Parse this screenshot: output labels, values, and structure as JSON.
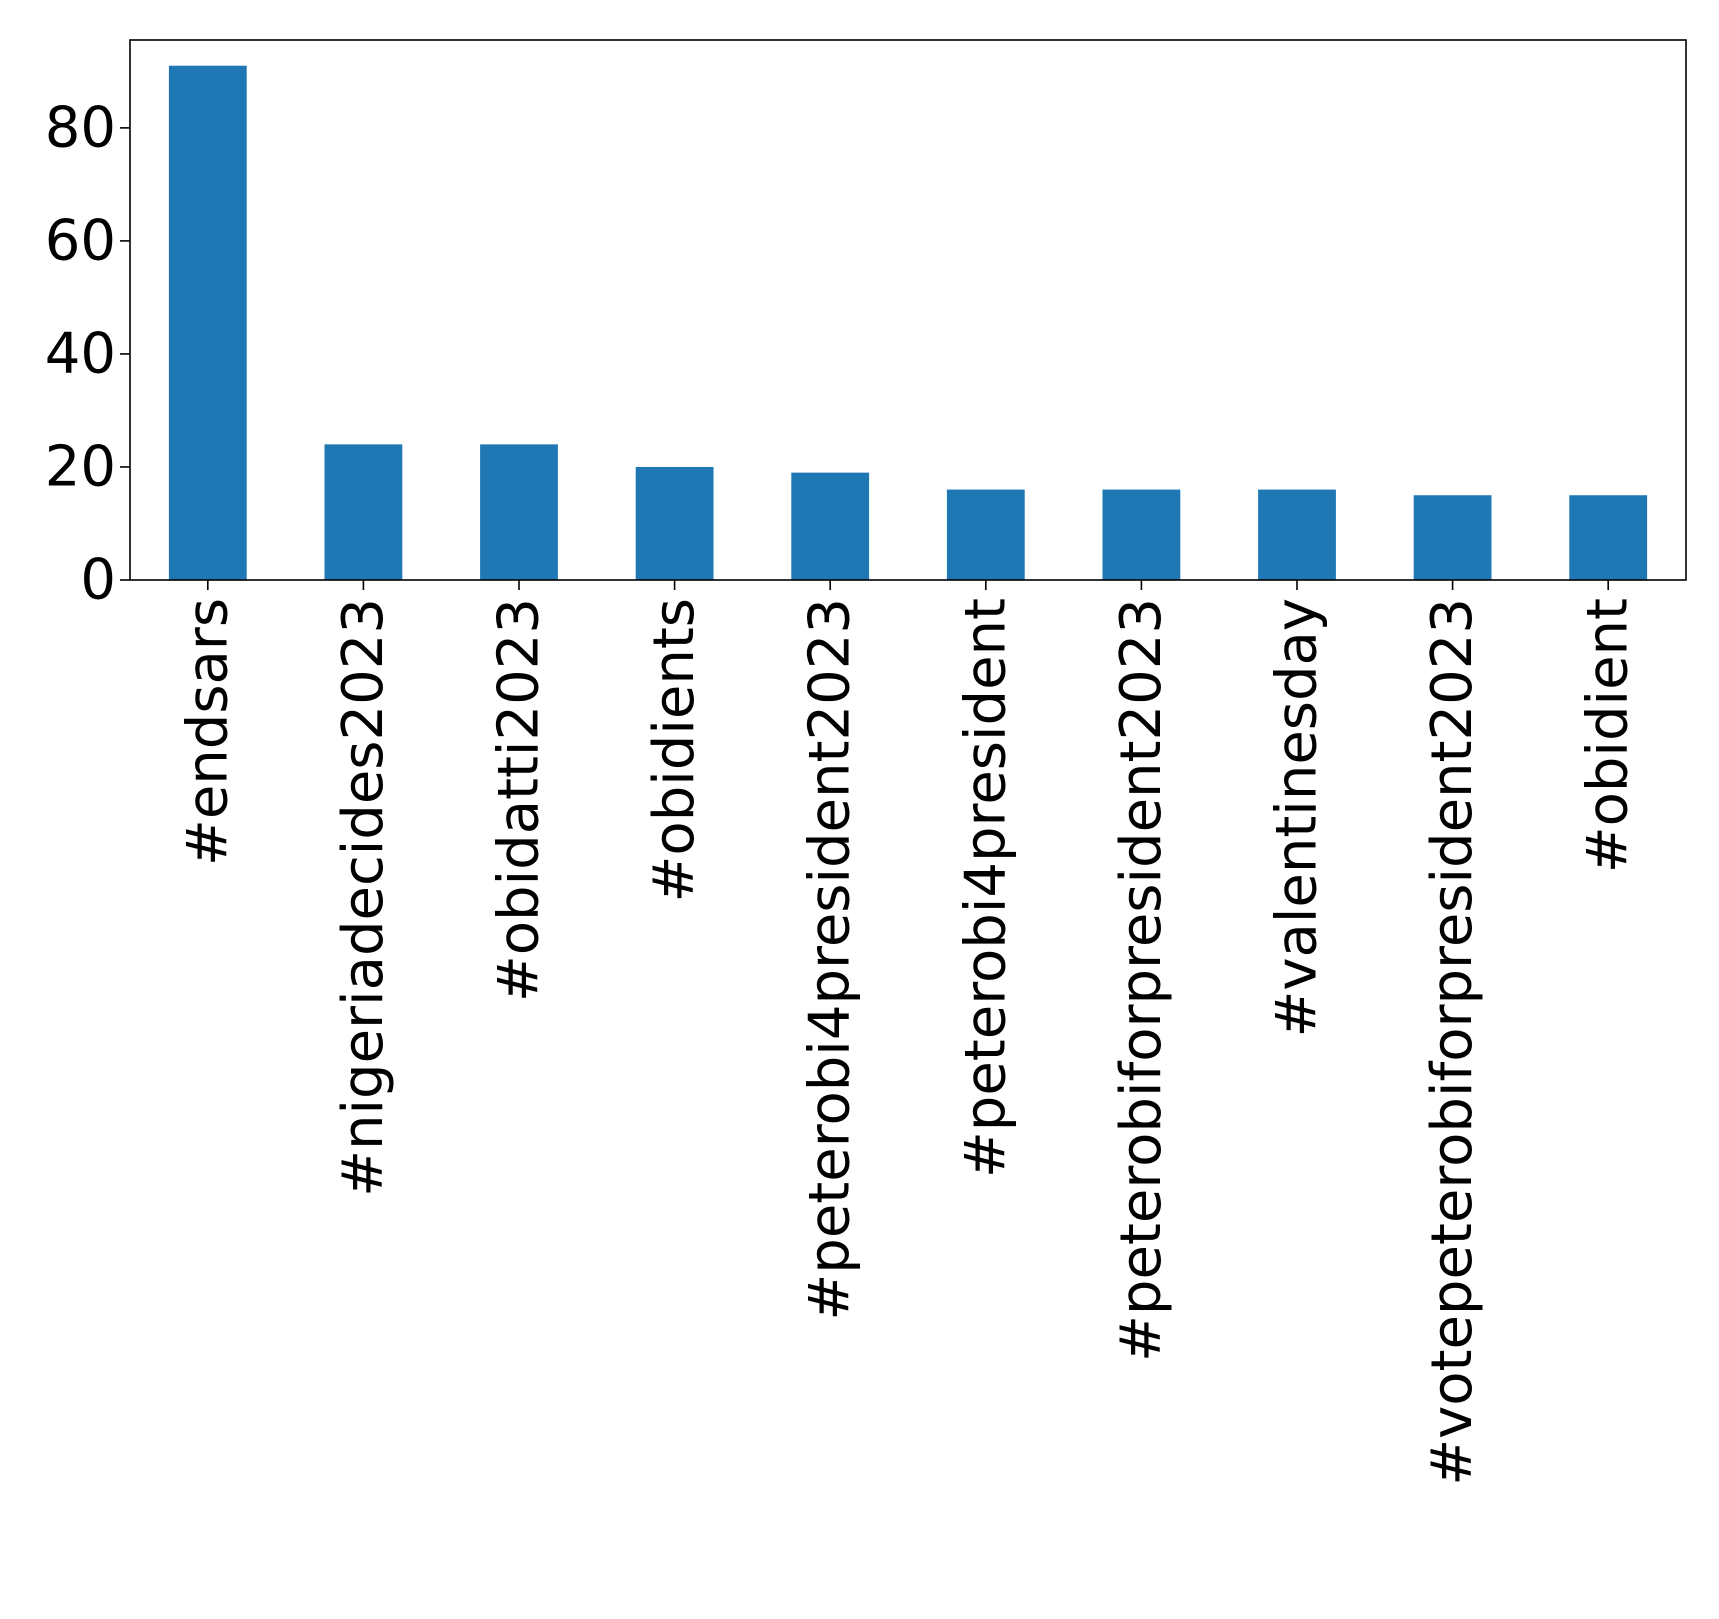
{
  "chart_data": {
    "type": "bar",
    "categories": [
      "#endsars",
      "#nigeriadecides2023",
      "#obidatti2023",
      "#obidients",
      "#peterobi4president2023",
      "#peterobi4president",
      "#peterobiforpresident2023",
      "#valentinesday",
      "#votepeterobiforpresident2023",
      "#obidient"
    ],
    "values": [
      91,
      24,
      24,
      20,
      19,
      16,
      16,
      16,
      15,
      15
    ],
    "title": "",
    "xlabel": "",
    "ylabel": "",
    "ylim": [
      0,
      95.55
    ],
    "yticks": [
      "0",
      "20",
      "40",
      "60",
      "80"
    ],
    "bar_color": "#1f77b4",
    "grid": false,
    "legend": "none"
  }
}
